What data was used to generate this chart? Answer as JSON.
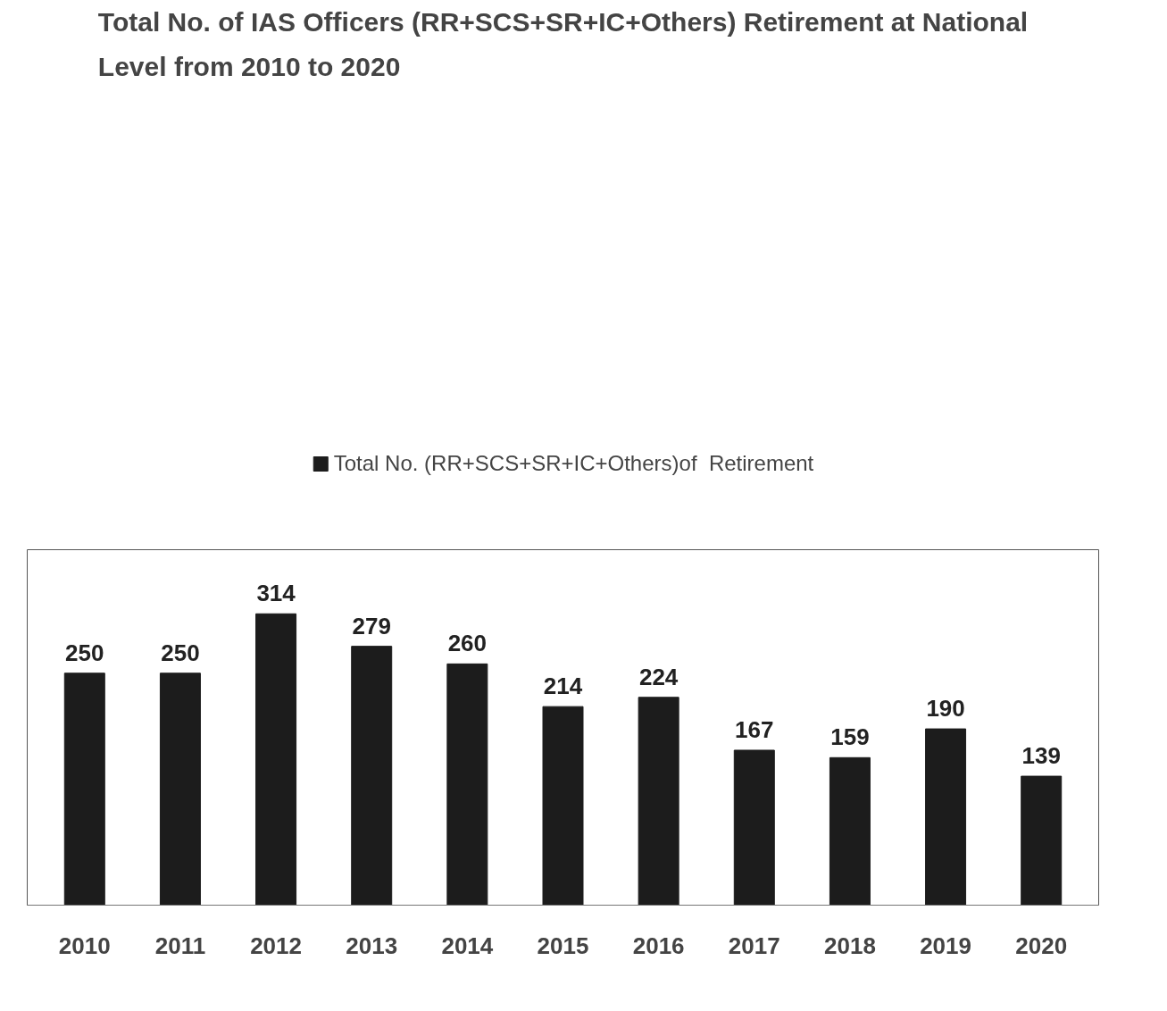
{
  "chart_data": {
    "type": "bar",
    "title": "Total No. of IAS Officers (RR+SCS+SR+IC+Others) Retirement at National Level from 2010 to 2020",
    "categories": [
      "2010",
      "2011",
      "2012",
      "2013",
      "2014",
      "2015",
      "2016",
      "2017",
      "2018",
      "2019",
      "2020"
    ],
    "series": [
      {
        "name": "Total No. (RR+SCS+SR+IC+Others)of  Retirement",
        "color": "#1c1c1c",
        "values": [
          250,
          250,
          314,
          279,
          260,
          214,
          224,
          167,
          159,
          190,
          139
        ]
      }
    ],
    "data_labels": true,
    "grid": false,
    "legend": "top"
  }
}
